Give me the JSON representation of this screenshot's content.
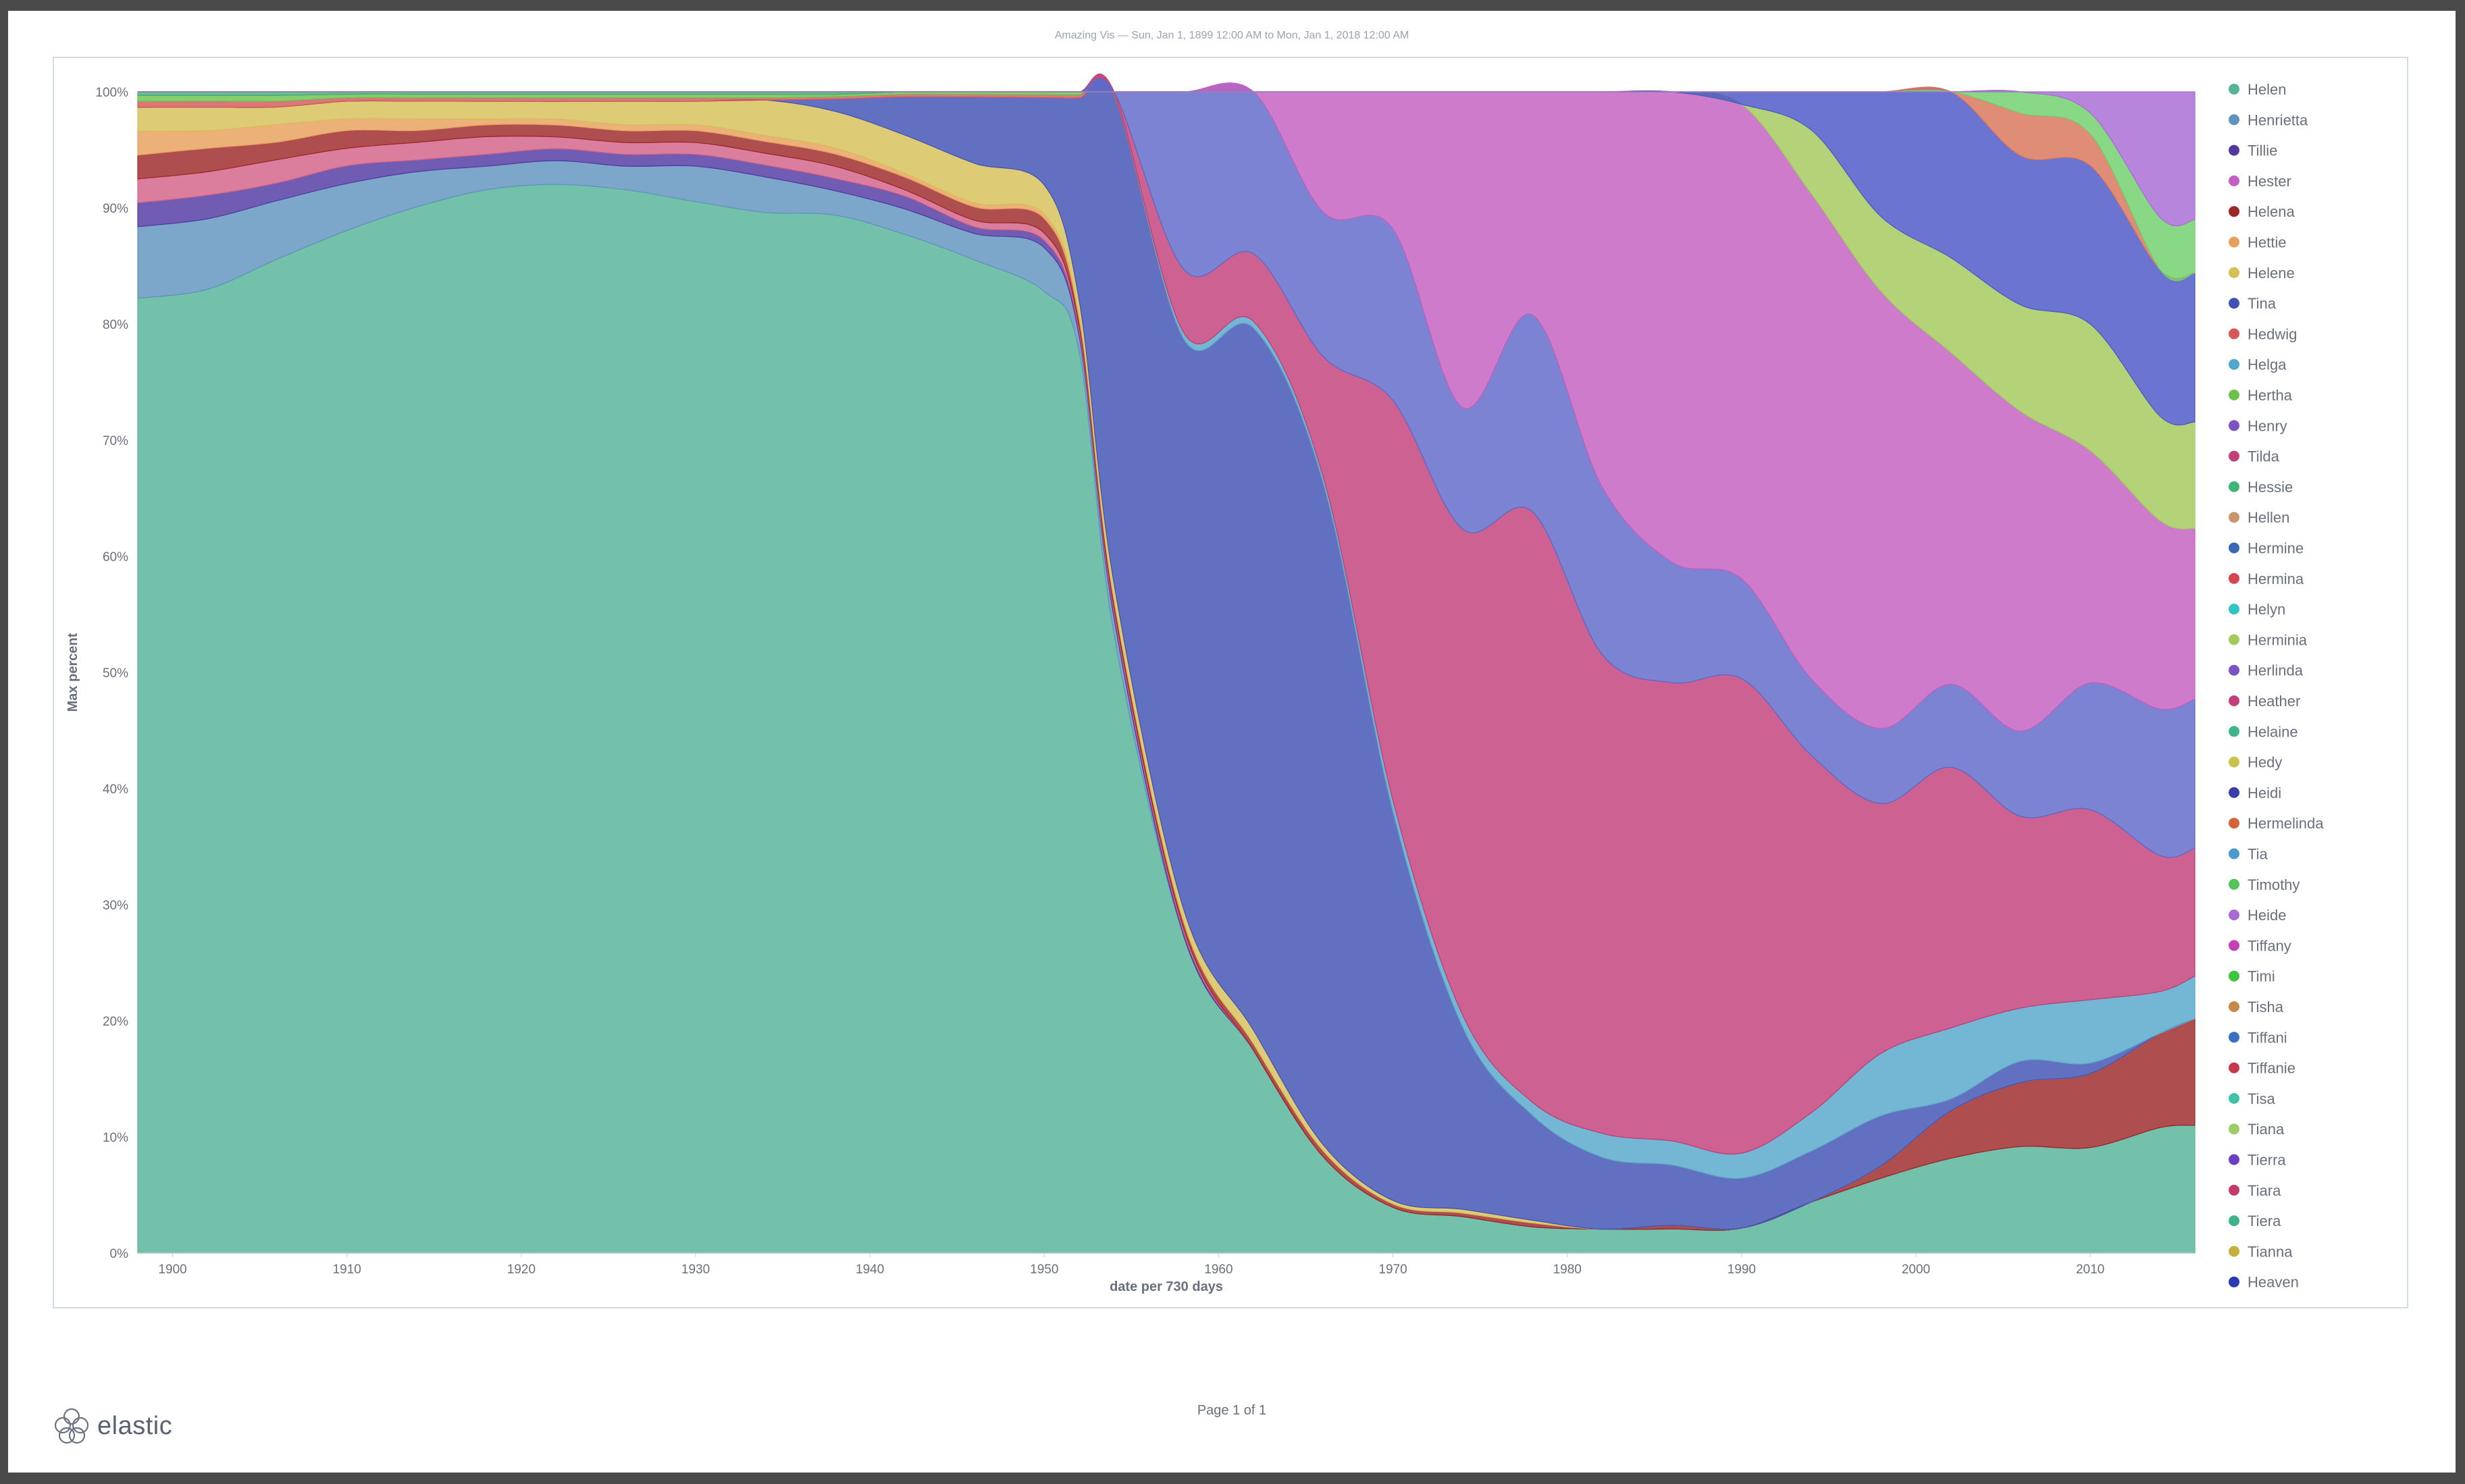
{
  "subtitle": "Amazing Vis — Sun, Jan 1, 1899 12:00 AM to Mon, Jan 1, 2018 12:00 AM",
  "footer": {
    "brand": "elastic",
    "page": "Page 1 of 1"
  },
  "chart_data": {
    "type": "area",
    "stacked": "percent",
    "xlabel": "date per 730 days",
    "ylabel": "Max percent",
    "xlim": [
      1898,
      2016
    ],
    "ylim": [
      0,
      100
    ],
    "x_ticks": [
      1900,
      1910,
      1920,
      1930,
      1940,
      1950,
      1960,
      1970,
      1980,
      1990,
      2000,
      2010
    ],
    "y_ticks": [
      "0%",
      "10%",
      "20%",
      "30%",
      "40%",
      "50%",
      "60%",
      "70%",
      "80%",
      "90%",
      "100%"
    ],
    "grid": false,
    "legend_position": "right",
    "x": [
      1898,
      1902,
      1906,
      1910,
      1914,
      1918,
      1922,
      1926,
      1930,
      1934,
      1938,
      1942,
      1946,
      1950,
      1952,
      1954,
      1958,
      1962,
      1966,
      1970,
      1974,
      1978,
      1982,
      1986,
      1990,
      1994,
      1998,
      2002,
      2006,
      2010,
      2014,
      2016
    ],
    "series": [
      {
        "name": "Helen",
        "color": "#54b399",
        "values": [
          80,
          82,
          85,
          87,
          89,
          90,
          90,
          90,
          89,
          88,
          85,
          80,
          75,
          66,
          58,
          38,
          25,
          15,
          8,
          4,
          3,
          2,
          2,
          2,
          2,
          4,
          6,
          8,
          10,
          10,
          12,
          12
        ]
      },
      {
        "name": "Henrietta",
        "color": "#6092c0",
        "values": [
          6,
          6,
          5,
          4,
          3,
          2,
          2,
          2,
          3,
          3,
          2,
          2,
          2,
          3,
          1,
          1,
          0,
          0,
          0,
          0,
          0,
          0,
          0,
          0,
          0,
          0,
          0,
          0,
          0,
          0,
          0,
          0
        ]
      },
      {
        "name": "Tillie",
        "color": "#5138a1",
        "values": [
          2,
          2,
          1.5,
          1.5,
          1,
          1,
          1,
          1,
          1,
          1,
          1,
          1,
          0.5,
          0.5,
          0.3,
          0.3,
          0.3,
          0,
          0,
          0,
          0,
          0,
          0,
          0,
          0,
          0,
          0,
          0,
          0,
          0,
          0,
          0
        ]
      },
      {
        "name": "Hester",
        "color": "#d36086",
        "values": [
          2,
          2,
          2,
          1.5,
          1.5,
          1.5,
          1,
          1,
          1,
          1,
          1,
          0.5,
          0.5,
          0.5,
          0.3,
          0.3,
          0.3,
          0,
          0,
          0,
          0,
          0,
          0,
          0,
          0,
          0,
          0,
          0,
          0,
          0,
          0,
          0
        ]
      },
      {
        "name": "Helena",
        "color": "#9c2727",
        "values": [
          2,
          2,
          1.5,
          1.5,
          1,
          1,
          1,
          1,
          1,
          1,
          1,
          1,
          1,
          1,
          0.5,
          0.5,
          0.5,
          0.5,
          0.5,
          0.3,
          0.3,
          0.3,
          0,
          0.3,
          0,
          0,
          1,
          4,
          6,
          7,
          9,
          10
        ]
      },
      {
        "name": "Hettie",
        "color": "#e7a05a",
        "values": [
          2,
          1.5,
          1.5,
          1,
          1,
          0.5,
          0.5,
          0.5,
          0.5,
          0.5,
          0.5,
          0.3,
          0.3,
          0.3,
          0.2,
          0,
          0,
          0,
          0,
          0,
          0,
          0,
          0,
          0,
          0,
          0,
          0,
          0,
          0,
          0,
          0,
          0
        ]
      },
      {
        "name": "Helene",
        "color": "#d6bf57",
        "values": [
          2,
          2,
          1.5,
          1.5,
          1.5,
          1.5,
          1.5,
          2,
          2,
          3,
          3,
          3,
          3,
          2,
          1,
          1,
          1,
          1,
          0.5,
          0.3,
          0.3,
          0.2,
          0,
          0,
          0,
          0,
          0,
          0,
          0,
          0,
          0,
          0
        ]
      },
      {
        "name": "Tina",
        "color": "#3f51b5",
        "values": [
          0,
          0,
          0,
          0,
          0,
          0,
          0,
          0,
          0,
          0,
          1,
          3,
          5,
          6,
          13,
          30,
          45,
          52,
          55,
          34,
          15,
          8,
          6,
          5,
          4,
          4,
          4,
          1,
          2,
          1,
          0,
          0
        ]
      },
      {
        "name": "Hedwig",
        "color": "#d65858",
        "values": [
          0.5,
          0.5,
          0.5,
          0.3,
          0.3,
          0.3,
          0.3,
          0.3,
          0.3,
          0.2,
          0.2,
          0.2,
          0.2,
          0.2,
          0.2,
          0.2,
          0,
          0,
          0,
          0,
          0,
          0,
          0,
          0,
          0,
          0,
          0,
          0,
          0,
          0,
          0,
          0
        ]
      },
      {
        "name": "Helga",
        "color": "#54a7cc",
        "values": [
          0,
          0,
          0,
          0,
          0,
          0,
          0,
          0,
          0,
          0,
          0,
          0,
          0,
          0,
          0,
          0,
          0.5,
          0.5,
          0.5,
          1,
          1,
          1,
          2,
          2,
          2,
          3,
          5,
          6,
          5,
          6,
          4,
          4
        ]
      },
      {
        "name": "Hertha",
        "color": "#6bc24a",
        "values": [
          0.5,
          0.5,
          0.5,
          0.3,
          0.3,
          0.3,
          0.3,
          0.3,
          0.3,
          0.3,
          0.2,
          0.2,
          0.2,
          0.2,
          0.2,
          0,
          0,
          0,
          0,
          0,
          0,
          0,
          0,
          0,
          0,
          0,
          0,
          0,
          0,
          0,
          0,
          0
        ]
      },
      {
        "name": "Henry",
        "color": "#7b52c4",
        "values": [
          0,
          0,
          0,
          0,
          0,
          0,
          0,
          0,
          0,
          0,
          0,
          0,
          0,
          0,
          0,
          0,
          0,
          0,
          0,
          0,
          0,
          0,
          0,
          0,
          0,
          0,
          0,
          0,
          0,
          0,
          0,
          0
        ]
      },
      {
        "name": "Tilda",
        "color": "#c2407a",
        "values": [
          0,
          0,
          0,
          0,
          0,
          0,
          0,
          0,
          0,
          0,
          0,
          0,
          0,
          0,
          0,
          0,
          5,
          5,
          10,
          35,
          40,
          45,
          40,
          38,
          38,
          28,
          20,
          22,
          18,
          18,
          13,
          12
        ]
      },
      {
        "name": "Hessie",
        "color": "#3fb477",
        "values": [
          0.3,
          0.3,
          0.3,
          0.2,
          0.2,
          0.2,
          0.2,
          0.2,
          0.2,
          0.2,
          0.2,
          0,
          0,
          0,
          0,
          0,
          0,
          0,
          0,
          0,
          0,
          0,
          0,
          0,
          0,
          0,
          0,
          0,
          0,
          0,
          0,
          0
        ]
      },
      {
        "name": "Heather",
        "color": "#a8578c",
        "values": [
          0,
          0,
          0,
          0,
          0,
          0,
          0,
          0,
          0,
          0,
          0,
          0,
          0,
          0,
          0,
          0,
          0,
          0,
          0,
          0,
          0,
          0,
          0,
          0,
          0,
          0,
          0,
          0,
          0,
          0,
          0,
          0
        ]
      },
      {
        "name": "Heidi",
        "color": "#5f68c9",
        "values": [
          0,
          0,
          0,
          0,
          0,
          0,
          0,
          0,
          0,
          0,
          0,
          0,
          0,
          0,
          0,
          0,
          14,
          12,
          12,
          15,
          10,
          15,
          14,
          10,
          8,
          6,
          6,
          7,
          8,
          12,
          14,
          14
        ]
      },
      {
        "name": "Tiffany",
        "color": "#c45ec0",
        "values": [
          0,
          0,
          0,
          0,
          0,
          0,
          0,
          0,
          0,
          0,
          0,
          0,
          0,
          0,
          0,
          0,
          0,
          0,
          10,
          12,
          26,
          17,
          33,
          39,
          38,
          38,
          35,
          28,
          30,
          22,
          18,
          16
        ]
      },
      {
        "name": "Tia",
        "color": "#4aa0d8",
        "values": [
          0,
          0,
          0,
          0,
          0,
          0,
          0,
          0,
          0,
          0,
          0,
          0,
          0,
          0,
          0,
          0,
          0,
          0,
          0,
          0,
          0,
          0,
          0,
          0,
          0,
          0,
          0,
          0,
          0,
          0,
          0,
          0
        ]
      },
      {
        "name": "Herminia",
        "color": "#a3c95a",
        "values": [
          0,
          0,
          0,
          0,
          0,
          0,
          0,
          0,
          0,
          0,
          0,
          0,
          0,
          0,
          0,
          0,
          0,
          0,
          0,
          0,
          0,
          0,
          0,
          0,
          0,
          5,
          6,
          8,
          10,
          12,
          10,
          10
        ]
      },
      {
        "name": "Tiana",
        "color": "#9ccc65",
        "values": [
          0,
          0,
          0,
          0,
          0,
          0,
          0,
          0,
          0,
          0,
          0,
          0,
          0,
          0,
          0,
          0,
          0,
          0,
          0,
          0,
          0,
          0,
          0,
          0,
          0,
          0,
          0,
          0,
          0,
          0,
          0,
          0
        ]
      },
      {
        "name": "Heaven",
        "color": "#4b57c7",
        "values": [
          0,
          0,
          0,
          0,
          0,
          0,
          0,
          0,
          0,
          0,
          0,
          0,
          0,
          0,
          0,
          0,
          0,
          0,
          0,
          0,
          0,
          0,
          0,
          0,
          1,
          3,
          10,
          14,
          14,
          15,
          14,
          14
        ]
      },
      {
        "name": "Hermelinda",
        "color": "#d9745a",
        "values": [
          0,
          0,
          0,
          0,
          0,
          0,
          0,
          0,
          0,
          0,
          0,
          0,
          0,
          0,
          0,
          0,
          0,
          0,
          0,
          0,
          0,
          0,
          0,
          0,
          0,
          0,
          0,
          0,
          4,
          3,
          0,
          0
        ]
      },
      {
        "name": "Timi",
        "color": "#6fcf6a",
        "values": [
          0,
          0,
          0,
          0,
          0,
          0,
          0,
          0,
          0,
          0,
          0,
          0,
          0,
          0,
          0,
          0,
          0,
          0,
          0,
          0,
          0,
          0,
          0,
          0,
          0,
          0,
          0,
          0,
          2,
          2,
          5,
          5
        ]
      },
      {
        "name": "Heide",
        "color": "#a86ad6",
        "values": [
          0,
          0,
          0,
          0,
          0,
          0,
          0,
          0,
          0,
          0,
          0,
          0,
          0,
          0,
          0,
          0,
          0,
          0,
          0,
          0,
          0,
          0,
          0,
          0,
          0,
          0,
          0,
          0,
          0,
          2,
          12,
          12
        ]
      }
    ],
    "legend": [
      {
        "name": "Helen",
        "color": "#54b399"
      },
      {
        "name": "Henrietta",
        "color": "#6092c0"
      },
      {
        "name": "Tillie",
        "color": "#5138a1"
      },
      {
        "name": "Hester",
        "color": "#c45ec0"
      },
      {
        "name": "Helena",
        "color": "#9c2727"
      },
      {
        "name": "Hettie",
        "color": "#e7a05a"
      },
      {
        "name": "Helene",
        "color": "#d6bf57"
      },
      {
        "name": "Tina",
        "color": "#3f51b5"
      },
      {
        "name": "Hedwig",
        "color": "#d65858"
      },
      {
        "name": "Helga",
        "color": "#54a7cc"
      },
      {
        "name": "Hertha",
        "color": "#6bc24a"
      },
      {
        "name": "Henry",
        "color": "#7b52c4"
      },
      {
        "name": "Tilda",
        "color": "#c2407a"
      },
      {
        "name": "Hessie",
        "color": "#3fb477"
      },
      {
        "name": "Hellen",
        "color": "#c9956a"
      },
      {
        "name": "Hermine",
        "color": "#3a67b3"
      },
      {
        "name": "Hermina",
        "color": "#d64550"
      },
      {
        "name": "Helyn",
        "color": "#2ec4c4"
      },
      {
        "name": "Herminia",
        "color": "#a3c95a"
      },
      {
        "name": "Herlinda",
        "color": "#7b52c4"
      },
      {
        "name": "Heather",
        "color": "#c2407a"
      },
      {
        "name": "Helaine",
        "color": "#3fb48f"
      },
      {
        "name": "Hedy",
        "color": "#c9c34a"
      },
      {
        "name": "Heidi",
        "color": "#3a3fa8"
      },
      {
        "name": "Hermelinda",
        "color": "#d2643a"
      },
      {
        "name": "Tia",
        "color": "#4a9ad0"
      },
      {
        "name": "Timothy",
        "color": "#52c45a"
      },
      {
        "name": "Heide",
        "color": "#a86ad6"
      },
      {
        "name": "Tiffany",
        "color": "#c73fb4"
      },
      {
        "name": "Timi",
        "color": "#3fc43f"
      },
      {
        "name": "Tisha",
        "color": "#c48a4a"
      },
      {
        "name": "Tiffani",
        "color": "#3a70c4"
      },
      {
        "name": "Tiffanie",
        "color": "#c43a4a"
      },
      {
        "name": "Tisa",
        "color": "#3fc4a8"
      },
      {
        "name": "Tiana",
        "color": "#9ccc65"
      },
      {
        "name": "Tierra",
        "color": "#6a3fc4"
      },
      {
        "name": "Tiara",
        "color": "#c43a6a"
      },
      {
        "name": "Tiera",
        "color": "#3fb48a"
      },
      {
        "name": "Tianna",
        "color": "#c4b03a"
      },
      {
        "name": "Heaven",
        "color": "#2a3ab4"
      }
    ]
  }
}
